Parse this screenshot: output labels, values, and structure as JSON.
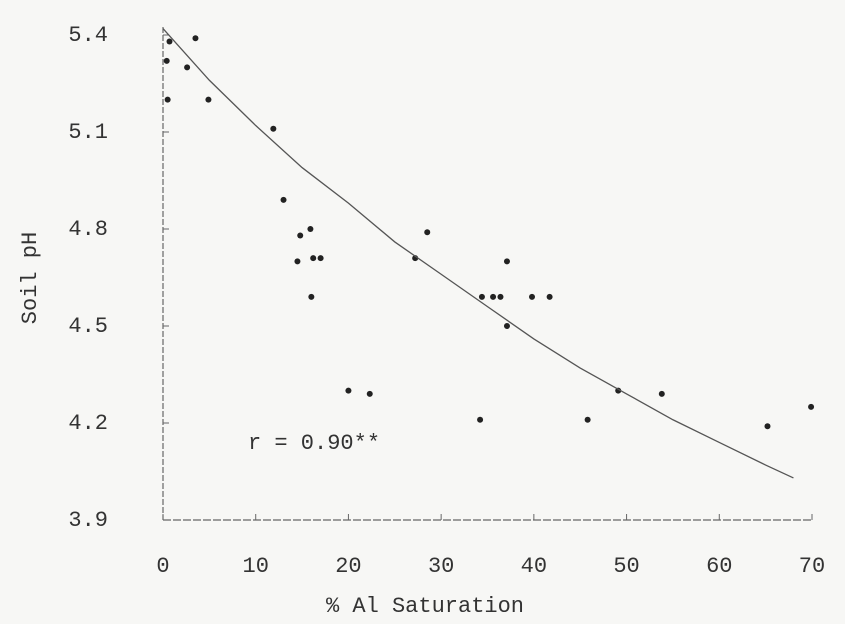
{
  "chart_data": {
    "type": "scatter",
    "x_label": "% Al Saturation",
    "y_label": "Soil pH",
    "annotation": "r = 0.90**",
    "xlim": [
      0,
      70
    ],
    "xticks": [
      0,
      10,
      20,
      30,
      40,
      50,
      60,
      70
    ],
    "ylim": [
      3.9,
      5.4
    ],
    "yticks": [
      3.9,
      4.2,
      4.5,
      4.8,
      5.1,
      5.4
    ],
    "series": [
      {
        "color": "#222222",
        "x": [
          0.7,
          3.5,
          0.4,
          2.6,
          0.5,
          4.9,
          11.9,
          13.0,
          14.8,
          14.5,
          15.9,
          17.0,
          16.2,
          16.0,
          27.2,
          28.5,
          34.4,
          35.6,
          36.4,
          37.1,
          37.1,
          39.8,
          41.7,
          20.0,
          22.3,
          34.2,
          45.8,
          49.1,
          53.8,
          65.2,
          69.9
        ],
        "values": [
          5.38,
          5.39,
          5.32,
          5.3,
          5.2,
          5.2,
          5.11,
          4.89,
          4.78,
          4.7,
          4.8,
          4.71,
          4.71,
          4.59,
          4.71,
          4.79,
          4.59,
          4.59,
          4.59,
          4.7,
          4.5,
          4.59,
          4.59,
          4.3,
          4.29,
          4.21,
          4.21,
          4.3,
          4.29,
          4.19,
          4.25
        ]
      },
      {
        "type": "line",
        "color": "#555555",
        "x": [
          0,
          5,
          10,
          15,
          20,
          25,
          30,
          35,
          40,
          45,
          50,
          55,
          60,
          65,
          68
        ],
        "values": [
          5.42,
          5.26,
          5.12,
          4.99,
          4.88,
          4.76,
          4.66,
          4.56,
          4.46,
          4.37,
          4.29,
          4.21,
          4.14,
          4.07,
          4.03
        ]
      }
    ]
  }
}
